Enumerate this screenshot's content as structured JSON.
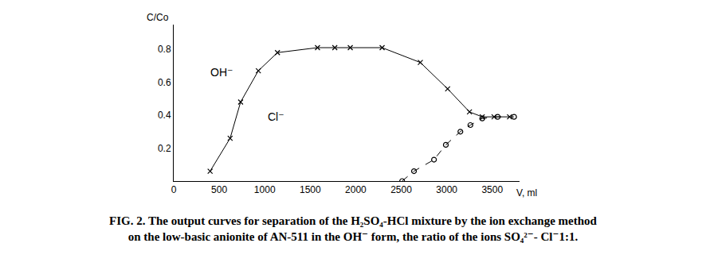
{
  "chart_data": {
    "type": "line",
    "title": "FIG. 2. The output curves for separation of the H₂SO₄-HCl mixture by the ion exchange method\non the low-basic anionite of AN-511 in the OH⁻ form, the ratio of the ions SO₄²⁻- Cl⁻1:1.",
    "xlabel": "V, ml",
    "ylabel": "C/Co",
    "xlim": [
      0,
      3800
    ],
    "ylim": [
      0,
      0.95
    ],
    "xticks": [
      0,
      500,
      1000,
      1500,
      2000,
      2500,
      3000,
      3500
    ],
    "yticks": [
      0.2,
      0.4,
      0.6,
      0.8
    ],
    "grid": false,
    "series": [
      {
        "color": "#000000",
        "marker": "x",
        "line_style": "solid",
        "x": [
          400,
          620,
          735,
          930,
          1140,
          1580,
          1770,
          1940,
          2290,
          2710,
          3010,
          3250,
          3390,
          3520,
          3690
        ],
        "values": [
          0.06,
          0.26,
          0.48,
          0.67,
          0.78,
          0.81,
          0.81,
          0.81,
          0.81,
          0.72,
          0.56,
          0.42,
          0.39,
          0.39,
          0.39
        ]
      },
      {
        "color": "#000000",
        "marker": "circle-open",
        "line_style": "dashed",
        "x": [
          2510,
          2640,
          2860,
          2990,
          3150,
          3260,
          3390,
          3560,
          3740
        ],
        "values": [
          0,
          0.06,
          0.13,
          0.22,
          0.3,
          0.34,
          0.38,
          0.39,
          0.39
        ]
      }
    ],
    "annotations": [
      {
        "text": "OH⁻",
        "x": 385,
        "y": 0.66
      },
      {
        "text": "Cl⁻",
        "x": 1020,
        "y": 0.39
      }
    ]
  }
}
